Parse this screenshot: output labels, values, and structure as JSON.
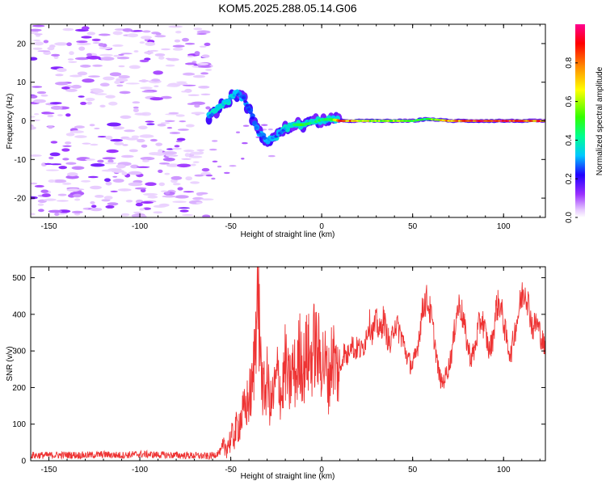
{
  "title": "KOM5.2025.288.05.14.G06",
  "chart_data": [
    {
      "type": "heatmap",
      "name": "spectrogram",
      "xlabel": "Height of straight line (km)",
      "ylabel": "Frequency (Hz)",
      "xlim": [
        -160,
        123
      ],
      "ylim": [
        -25,
        25
      ],
      "xticks": [
        -150,
        -100,
        -50,
        0,
        50,
        100
      ],
      "yticks": [
        -20,
        -10,
        0,
        10,
        20
      ],
      "colorbar": {
        "label": "Normalized spectral amplitude",
        "range": [
          0,
          1
        ],
        "ticks": [
          "0.0",
          "0.2",
          "0.4",
          "0.6",
          "0.8"
        ],
        "tick_values": [
          0,
          0.2,
          0.4,
          0.6,
          0.8
        ]
      },
      "noise_region": {
        "x": [
          -160,
          -62
        ],
        "y": [
          -25,
          25
        ],
        "amplitude": 0.1
      },
      "signal_trace": [
        {
          "x": -62,
          "y": 1,
          "amp": 0.3
        },
        {
          "x": -57,
          "y": 3,
          "amp": 0.35
        },
        {
          "x": -52,
          "y": 5,
          "amp": 0.35
        },
        {
          "x": -47,
          "y": 7,
          "amp": 0.3
        },
        {
          "x": -43,
          "y": 6,
          "amp": 0.25
        },
        {
          "x": -39,
          "y": 2,
          "amp": 0.25
        },
        {
          "x": -35,
          "y": -3,
          "amp": 0.25
        },
        {
          "x": -30,
          "y": -5,
          "amp": 0.3
        },
        {
          "x": -25,
          "y": -4,
          "amp": 0.3
        },
        {
          "x": -20,
          "y": -2,
          "amp": 0.3
        },
        {
          "x": -15,
          "y": -1,
          "amp": 0.45
        },
        {
          "x": -10,
          "y": -1,
          "amp": 0.5
        },
        {
          "x": -5,
          "y": -0.5,
          "amp": 0.45
        },
        {
          "x": 0,
          "y": 0.3,
          "amp": 0.45
        },
        {
          "x": 5,
          "y": 0.4,
          "amp": 0.5
        },
        {
          "x": 10,
          "y": 0,
          "amp": 0.9
        },
        {
          "x": 20,
          "y": 0,
          "amp": 0.75
        },
        {
          "x": 30,
          "y": 0,
          "amp": 0.6
        },
        {
          "x": 40,
          "y": 0,
          "amp": 0.65
        },
        {
          "x": 50,
          "y": 0,
          "amp": 0.55
        },
        {
          "x": 58,
          "y": 0.5,
          "amp": 0.5
        },
        {
          "x": 70,
          "y": 0,
          "amp": 0.8
        },
        {
          "x": 80,
          "y": 0,
          "amp": 0.85
        },
        {
          "x": 90,
          "y": 0,
          "amp": 0.9
        },
        {
          "x": 100,
          "y": 0,
          "amp": 0.95
        },
        {
          "x": 110,
          "y": 0,
          "amp": 0.9
        },
        {
          "x": 123,
          "y": 0,
          "amp": 0.85
        }
      ]
    },
    {
      "type": "line",
      "name": "snr",
      "xlabel": "Height of straight line (km)",
      "ylabel": "SNR (v/v)",
      "xlim": [
        -160,
        123
      ],
      "ylim": [
        0,
        530
      ],
      "xticks": [
        -150,
        -100,
        -50,
        0,
        50,
        100
      ],
      "yticks": [
        0,
        100,
        200,
        300,
        400,
        500
      ],
      "color": "#ee3333",
      "series": [
        {
          "name": "SNR",
          "x": [
            -160,
            -150,
            -140,
            -130,
            -120,
            -110,
            -100,
            -90,
            -80,
            -70,
            -62,
            -58,
            -55,
            -52,
            -50,
            -48,
            -45,
            -42,
            -40,
            -38,
            -36,
            -35,
            -34,
            -32,
            -30,
            -28,
            -26,
            -24,
            -22,
            -20,
            -18,
            -16,
            -14,
            -12,
            -10,
            -8,
            -6,
            -4,
            -2,
            0,
            2,
            4,
            6,
            8,
            10,
            12,
            14,
            16,
            18,
            20,
            22,
            24,
            26,
            28,
            30,
            32,
            34,
            36,
            38,
            40,
            42,
            44,
            46,
            48,
            50,
            52,
            54,
            56,
            58,
            60,
            62,
            64,
            66,
            68,
            70,
            72,
            74,
            76,
            78,
            80,
            82,
            84,
            86,
            88,
            90,
            92,
            94,
            96,
            98,
            100,
            102,
            104,
            106,
            108,
            110,
            112,
            114,
            116,
            118,
            120,
            123
          ],
          "values": [
            15,
            15,
            16,
            15,
            17,
            15,
            18,
            16,
            15,
            14,
            12,
            18,
            28,
            42,
            58,
            72,
            110,
            140,
            170,
            200,
            380,
            520,
            280,
            180,
            220,
            150,
            190,
            240,
            170,
            270,
            200,
            250,
            230,
            300,
            250,
            300,
            270,
            320,
            290,
            280,
            260,
            220,
            300,
            250,
            240,
            300,
            280,
            330,
            300,
            310,
            300,
            330,
            380,
            350,
            380,
            350,
            390,
            340,
            310,
            380,
            360,
            340,
            300,
            270,
            260,
            290,
            360,
            430,
            440,
            400,
            330,
            250,
            210,
            230,
            260,
            310,
            400,
            430,
            380,
            320,
            280,
            300,
            360,
            390,
            350,
            300,
            330,
            420,
            430,
            380,
            320,
            290,
            350,
            400,
            450,
            470,
            420,
            360,
            380,
            350,
            300
          ]
        }
      ]
    }
  ]
}
